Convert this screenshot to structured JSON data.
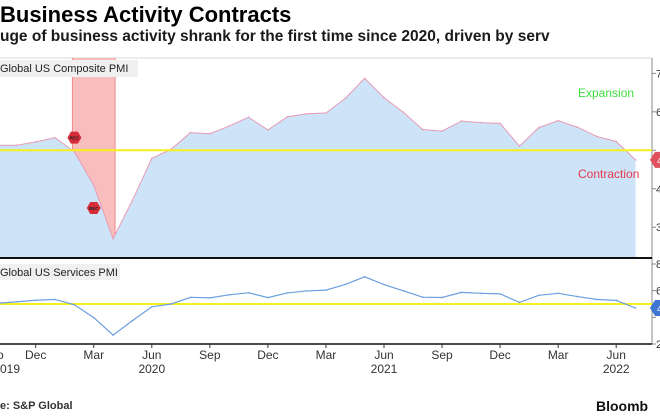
{
  "header": {
    "title": "Business Activity Contracts",
    "subtitle": "uge of business activity shrank for the first time since 2020, driven by serv"
  },
  "footer": {
    "source": "e: S&P Global",
    "brand": "Bloomb"
  },
  "colors": {
    "area_fill": "#cde3f7",
    "area_line": "#e89bb6",
    "threshold": "#f5f11a",
    "services_line": "#6b9fe0",
    "recession_band": "#f7b3b3",
    "expansion_text": "#3fdc3f",
    "contraction_text": "#e8394a",
    "axis_line": "#111111"
  },
  "chart_data": [
    {
      "type": "area",
      "series_label": "Global US Composite PMI",
      "x": [
        "2019-10",
        "2019-11",
        "2019-12",
        "2020-01",
        "2020-02",
        "2020-03",
        "2020-04",
        "2020-05",
        "2020-06",
        "2020-07",
        "2020-08",
        "2020-09",
        "2020-10",
        "2020-11",
        "2020-12",
        "2021-01",
        "2021-02",
        "2021-03",
        "2021-04",
        "2021-05",
        "2021-06",
        "2021-07",
        "2021-08",
        "2021-09",
        "2021-10",
        "2021-11",
        "2021-12",
        "2022-01",
        "2022-02",
        "2022-03",
        "2022-04",
        "2022-05",
        "2022-06",
        "2022-07"
      ],
      "values": [
        51.3,
        51.3,
        52.2,
        53.3,
        49.6,
        40.9,
        27.0,
        37.0,
        47.9,
        50.3,
        54.6,
        54.3,
        56.3,
        58.6,
        55.3,
        58.7,
        59.5,
        59.7,
        63.5,
        68.7,
        63.7,
        59.9,
        55.4,
        55.0,
        57.6,
        57.2,
        57.0,
        51.1,
        55.9,
        57.7,
        56.0,
        53.6,
        52.3,
        47.5
      ],
      "threshold": 50,
      "ylim": [
        22,
        74
      ],
      "y_ticks": [
        "7",
        "6",
        "5",
        "4",
        "3"
      ],
      "annotations": {
        "expansion": "Expansion",
        "contraction": "Contraction",
        "last_value": "4",
        "recession_start_tag": "REC",
        "recession_end_tag": "REC"
      },
      "recession": [
        "2020-02",
        "2020-04"
      ]
    },
    {
      "type": "line",
      "series_label": "Global US Services PMI",
      "x": [
        "2019-10",
        "2019-11",
        "2019-12",
        "2020-01",
        "2020-02",
        "2020-03",
        "2020-04",
        "2020-05",
        "2020-06",
        "2020-07",
        "2020-08",
        "2020-09",
        "2020-10",
        "2020-11",
        "2020-12",
        "2021-01",
        "2021-02",
        "2021-03",
        "2021-04",
        "2021-05",
        "2021-06",
        "2021-07",
        "2021-08",
        "2021-09",
        "2021-10",
        "2021-11",
        "2021-12",
        "2022-01",
        "2022-02",
        "2022-03",
        "2022-04",
        "2022-05",
        "2022-06",
        "2022-07"
      ],
      "values": [
        50.6,
        51.6,
        52.8,
        53.4,
        49.4,
        39.8,
        26.7,
        37.5,
        47.9,
        50.0,
        55.0,
        54.6,
        56.9,
        58.4,
        54.8,
        58.3,
        59.8,
        60.4,
        64.7,
        70.4,
        64.6,
        59.9,
        55.1,
        54.9,
        58.7,
        58.0,
        57.6,
        51.2,
        56.5,
        58.0,
        55.6,
        53.4,
        52.7,
        47.0
      ],
      "threshold": 50,
      "ylim": [
        20,
        80
      ],
      "y_ticks": [
        "8",
        "6",
        "4",
        "2"
      ],
      "annotations": {
        "last_value": "4"
      }
    }
  ],
  "x_axis": {
    "month_labels": [
      {
        "label": "o",
        "month": "2019-10"
      },
      {
        "label": "Dec",
        "month": "2019-12"
      },
      {
        "label": "Mar",
        "month": "2020-03"
      },
      {
        "label": "Jun",
        "month": "2020-06"
      },
      {
        "label": "Sep",
        "month": "2020-09"
      },
      {
        "label": "Dec",
        "month": "2020-12"
      },
      {
        "label": "Mar",
        "month": "2021-03"
      },
      {
        "label": "Jun",
        "month": "2021-06"
      },
      {
        "label": "Sep",
        "month": "2021-09"
      },
      {
        "label": "Dec",
        "month": "2021-12"
      },
      {
        "label": "Mar",
        "month": "2022-03"
      },
      {
        "label": "Jun",
        "month": "2022-06"
      }
    ],
    "year_labels": [
      {
        "label": "019",
        "month": "2019-10"
      },
      {
        "label": "2020",
        "month": "2020-06"
      },
      {
        "label": "2021",
        "month": "2021-06"
      },
      {
        "label": "2022",
        "month": "2022-06"
      }
    ]
  }
}
